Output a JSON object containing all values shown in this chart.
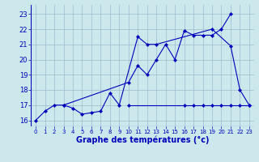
{
  "title": "Graphe des températures (°c)",
  "bg_color": "#cce8ec",
  "grid_color": "#99bbcc",
  "line_color": "#0000bb",
  "x_ticks": [
    0,
    1,
    2,
    3,
    4,
    5,
    6,
    7,
    8,
    9,
    10,
    11,
    12,
    13,
    14,
    15,
    16,
    17,
    18,
    19,
    20,
    21,
    22,
    23
  ],
  "y_ticks": [
    16,
    17,
    18,
    19,
    20,
    21,
    22,
    23
  ],
  "xlim": [
    -0.5,
    23.5
  ],
  "ylim": [
    15.6,
    23.6
  ],
  "line1_x": [
    0,
    1,
    2,
    3,
    4,
    5,
    6,
    7,
    8,
    9,
    11,
    12,
    13,
    19,
    21,
    22,
    23
  ],
  "line1_y": [
    16.0,
    16.6,
    17.0,
    17.0,
    16.8,
    16.4,
    16.5,
    16.6,
    17.8,
    17.0,
    21.5,
    21.0,
    21.0,
    22.0,
    20.9,
    18.0,
    17.0
  ],
  "line2_x": [
    3,
    10,
    11,
    12,
    13,
    14,
    15,
    16,
    17,
    18,
    19,
    20,
    21
  ],
  "line2_y": [
    17.0,
    18.5,
    19.6,
    19.0,
    20.0,
    21.0,
    20.0,
    21.9,
    21.6,
    21.6,
    21.6,
    22.0,
    23.0
  ],
  "line3_x": [
    10,
    16,
    17,
    18,
    19,
    20,
    21,
    22,
    23
  ],
  "line3_y": [
    17.0,
    17.0,
    17.0,
    17.0,
    17.0,
    17.0,
    17.0,
    17.0,
    17.0
  ]
}
